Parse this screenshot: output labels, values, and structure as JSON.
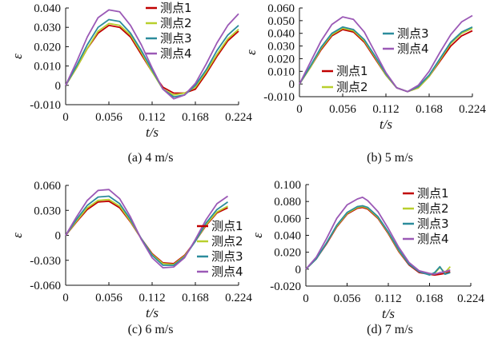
{
  "chart_data": [
    {
      "type": "line",
      "caption": "(a) 4 m/s",
      "xlabel": "t/s",
      "ylabel": "ε",
      "xlim": [
        0,
        0.224
      ],
      "ylim": [
        -0.01,
        0.04
      ],
      "xticks": [
        "0",
        "0.056",
        "0.112",
        "0.168",
        "0.224"
      ],
      "yticks": [
        "-0.010",
        "0",
        "0.010",
        "0.020",
        "0.030",
        "0.040"
      ],
      "legend_position": "top-right",
      "x": [
        0,
        0.014,
        0.028,
        0.042,
        0.056,
        0.07,
        0.084,
        0.098,
        0.112,
        0.126,
        0.14,
        0.154,
        0.168,
        0.182,
        0.196,
        0.21,
        0.224
      ],
      "series": [
        {
          "name": "测点1",
          "color": "#c00000",
          "values": [
            0.0,
            0.009,
            0.019,
            0.027,
            0.031,
            0.03,
            0.025,
            0.016,
            0.007,
            -0.001,
            -0.004,
            -0.004,
            -0.002,
            0.006,
            0.015,
            0.023,
            0.028
          ]
        },
        {
          "name": "测点2",
          "color": "#b8cf2d",
          "values": [
            0.0,
            0.009,
            0.019,
            0.028,
            0.032,
            0.031,
            0.026,
            0.017,
            0.007,
            -0.002,
            -0.005,
            -0.004,
            -0.001,
            0.007,
            0.016,
            0.024,
            0.029
          ]
        },
        {
          "name": "测点3",
          "color": "#2c8c9c",
          "values": [
            0.0,
            0.01,
            0.021,
            0.03,
            0.034,
            0.033,
            0.027,
            0.018,
            0.008,
            -0.002,
            -0.006,
            -0.005,
            0.0,
            0.008,
            0.018,
            0.026,
            0.031
          ]
        },
        {
          "name": "测点4",
          "color": "#9b59b6",
          "values": [
            0.0,
            0.012,
            0.025,
            0.035,
            0.039,
            0.038,
            0.031,
            0.021,
            0.009,
            -0.002,
            -0.007,
            -0.005,
            0.001,
            0.011,
            0.022,
            0.031,
            0.037
          ]
        }
      ]
    },
    {
      "type": "line",
      "caption": "(b) 5 m/s",
      "xlabel": "t/s",
      "ylabel": "ε",
      "xlim": [
        0,
        0.224
      ],
      "ylim": [
        -0.01,
        0.06
      ],
      "xticks": [
        "0",
        "0.056",
        "0.112",
        "0.168",
        "0.224"
      ],
      "yticks": [
        "-0.010",
        "0",
        "0.010",
        "0.020",
        "0.030",
        "0.040",
        "0.050",
        "0.060"
      ],
      "legend_position": "split",
      "x": [
        0,
        0.014,
        0.028,
        0.042,
        0.056,
        0.07,
        0.084,
        0.098,
        0.112,
        0.126,
        0.14,
        0.154,
        0.168,
        0.182,
        0.196,
        0.21,
        0.224
      ],
      "series": [
        {
          "name": "测点1",
          "color": "#c00000",
          "values": [
            0.0,
            0.013,
            0.027,
            0.038,
            0.043,
            0.041,
            0.033,
            0.02,
            0.007,
            -0.003,
            -0.006,
            -0.003,
            0.006,
            0.018,
            0.03,
            0.038,
            0.042
          ]
        },
        {
          "name": "测点2",
          "color": "#b8cf2d",
          "values": [
            0.0,
            0.013,
            0.028,
            0.039,
            0.044,
            0.042,
            0.034,
            0.021,
            0.007,
            -0.003,
            -0.006,
            -0.003,
            0.006,
            0.019,
            0.032,
            0.04,
            0.044
          ]
        },
        {
          "name": "测点3",
          "color": "#2c8c9c",
          "values": [
            0.0,
            0.014,
            0.029,
            0.04,
            0.045,
            0.043,
            0.035,
            0.022,
            0.008,
            -0.003,
            -0.006,
            -0.002,
            0.007,
            0.02,
            0.033,
            0.041,
            0.045
          ]
        },
        {
          "name": "测点4",
          "color": "#9b59b6",
          "values": [
            0.0,
            0.017,
            0.034,
            0.047,
            0.053,
            0.051,
            0.041,
            0.025,
            0.009,
            -0.003,
            -0.006,
            -0.001,
            0.01,
            0.025,
            0.039,
            0.049,
            0.054
          ]
        }
      ]
    },
    {
      "type": "line",
      "caption": "(c) 6 m/s",
      "xlabel": "t/s",
      "ylabel": "ε",
      "xlim": [
        0,
        0.224
      ],
      "ylim": [
        -0.06,
        0.06
      ],
      "xticks": [
        "0",
        "0.056",
        "0.112",
        "0.168",
        "0.224"
      ],
      "yticks": [
        "-0.060",
        "-0.030",
        "0",
        "0.030",
        "0.060"
      ],
      "legend_position": "right",
      "x": [
        0,
        0.014,
        0.028,
        0.042,
        0.056,
        0.07,
        0.084,
        0.098,
        0.112,
        0.126,
        0.14,
        0.154,
        0.168,
        0.182,
        0.196,
        0.21
      ],
      "series": [
        {
          "name": "测点1",
          "color": "#c00000",
          "values": [
            0.0,
            0.016,
            0.031,
            0.04,
            0.041,
            0.033,
            0.016,
            -0.004,
            -0.022,
            -0.033,
            -0.034,
            -0.024,
            -0.007,
            0.012,
            0.027,
            0.033
          ]
        },
        {
          "name": "测点2",
          "color": "#b8cf2d",
          "values": [
            0.0,
            0.017,
            0.033,
            0.042,
            0.043,
            0.035,
            0.017,
            -0.004,
            -0.023,
            -0.034,
            -0.035,
            -0.025,
            -0.007,
            0.013,
            0.028,
            0.035
          ]
        },
        {
          "name": "测点3",
          "color": "#2c8c9c",
          "values": [
            0.0,
            0.019,
            0.036,
            0.046,
            0.047,
            0.038,
            0.019,
            -0.004,
            -0.024,
            -0.036,
            -0.036,
            -0.026,
            -0.007,
            0.015,
            0.031,
            0.04
          ]
        },
        {
          "name": "测点4",
          "color": "#9b59b6",
          "values": [
            0.0,
            0.022,
            0.042,
            0.054,
            0.055,
            0.044,
            0.022,
            -0.005,
            -0.027,
            -0.039,
            -0.038,
            -0.027,
            -0.005,
            0.019,
            0.038,
            0.047
          ]
        }
      ]
    },
    {
      "type": "line",
      "caption": "(d) 7 m/s",
      "xlabel": "t/s",
      "ylabel": "ε",
      "xlim": [
        0,
        0.224
      ],
      "ylim": [
        -0.02,
        0.1
      ],
      "xticks": [
        "0",
        "0.056",
        "0.112",
        "0.168",
        "0.224"
      ],
      "yticks": [
        "-0.020",
        "0",
        "0.020",
        "0.040",
        "0.060",
        "0.080",
        "0.100"
      ],
      "legend_position": "top-right",
      "x": [
        0,
        0.014,
        0.028,
        0.042,
        0.056,
        0.07,
        0.077,
        0.084,
        0.098,
        0.112,
        0.126,
        0.14,
        0.154,
        0.168,
        0.175,
        0.182,
        0.189,
        0.196
      ],
      "series": [
        {
          "name": "测点1",
          "color": "#c00000",
          "values": [
            0.0,
            0.012,
            0.03,
            0.05,
            0.065,
            0.072,
            0.073,
            0.071,
            0.06,
            0.042,
            0.021,
            0.005,
            -0.004,
            -0.006,
            -0.007,
            -0.006,
            -0.005,
            -0.003
          ]
        },
        {
          "name": "测点2",
          "color": "#b8cf2d",
          "values": [
            0.0,
            0.012,
            0.031,
            0.051,
            0.066,
            0.073,
            0.074,
            0.072,
            0.061,
            0.043,
            0.022,
            0.006,
            -0.003,
            -0.006,
            -0.005,
            0.002,
            -0.004,
            0.003
          ]
        },
        {
          "name": "测点3",
          "color": "#2c8c9c",
          "values": [
            0.0,
            0.012,
            0.031,
            0.052,
            0.067,
            0.074,
            0.075,
            0.073,
            0.062,
            0.044,
            0.023,
            0.006,
            -0.003,
            -0.007,
            -0.004,
            0.003,
            -0.006,
            -0.004
          ]
        },
        {
          "name": "测点4",
          "color": "#9b59b6",
          "values": [
            0.0,
            0.014,
            0.036,
            0.06,
            0.076,
            0.083,
            0.085,
            0.081,
            0.068,
            0.048,
            0.026,
            0.008,
            -0.002,
            -0.005,
            -0.006,
            -0.004,
            -0.003,
            -0.001
          ]
        }
      ]
    }
  ]
}
